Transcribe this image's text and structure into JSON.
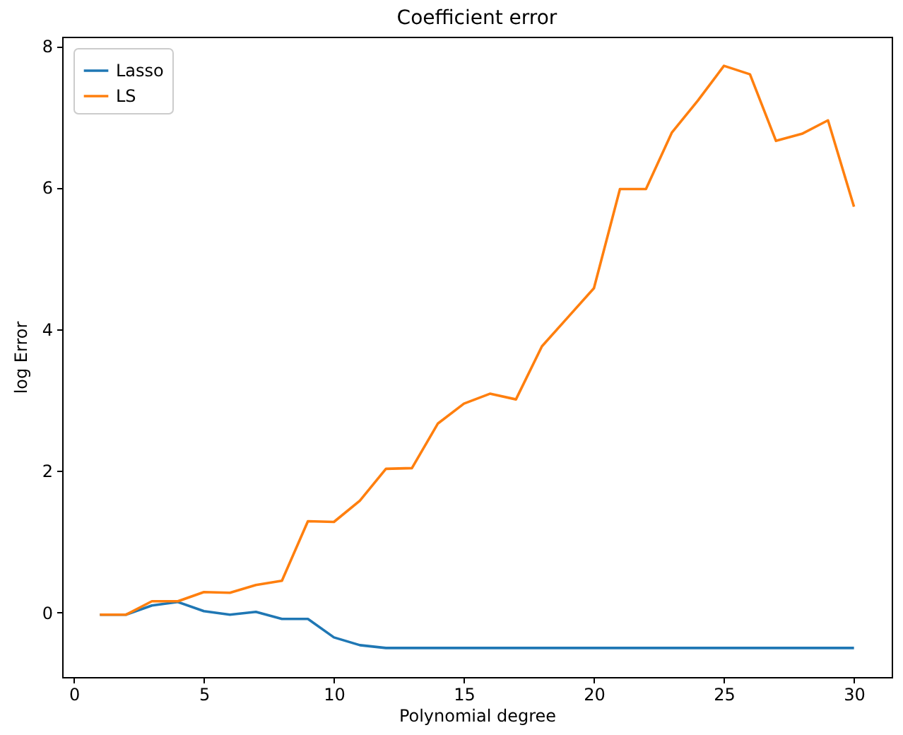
{
  "chart_data": {
    "type": "line",
    "title": "Coefficient error",
    "xlabel": "Polynomial degree",
    "ylabel": "log Error",
    "x": [
      1,
      2,
      3,
      4,
      5,
      6,
      7,
      8,
      9,
      10,
      11,
      12,
      13,
      14,
      15,
      16,
      17,
      18,
      19,
      20,
      21,
      22,
      23,
      24,
      25,
      26,
      27,
      28,
      29,
      30
    ],
    "series": [
      {
        "name": "Lasso",
        "color": "#1f77b4",
        "values": [
          -0.03,
          -0.03,
          0.1,
          0.15,
          0.02,
          -0.03,
          0.01,
          -0.09,
          -0.09,
          -0.35,
          -0.46,
          -0.5,
          -0.5,
          -0.5,
          -0.5,
          -0.5,
          -0.5,
          -0.5,
          -0.5,
          -0.5,
          -0.5,
          -0.5,
          -0.5,
          -0.5,
          -0.5,
          -0.5,
          -0.5,
          -0.5,
          -0.5,
          -0.5
        ]
      },
      {
        "name": "LS",
        "color": "#ff7f0e",
        "values": [
          -0.03,
          -0.03,
          0.16,
          0.16,
          0.29,
          0.28,
          0.39,
          0.45,
          1.29,
          1.28,
          1.58,
          2.03,
          2.04,
          2.67,
          2.95,
          3.09,
          3.01,
          3.76,
          4.17,
          4.58,
          5.98,
          5.98,
          6.78,
          7.23,
          7.72,
          7.6,
          6.66,
          6.76,
          6.95,
          5.73
        ]
      }
    ],
    "xlim": [
      -0.45,
      31.45
    ],
    "xticks": [
      0,
      5,
      10,
      15,
      20,
      25,
      30
    ],
    "ylim": [
      -0.91,
      8.13
    ],
    "yticks": [
      0,
      2,
      4,
      6,
      8
    ],
    "legend": "top left",
    "grid": false,
    "marker": "none",
    "line_style": "solid"
  }
}
